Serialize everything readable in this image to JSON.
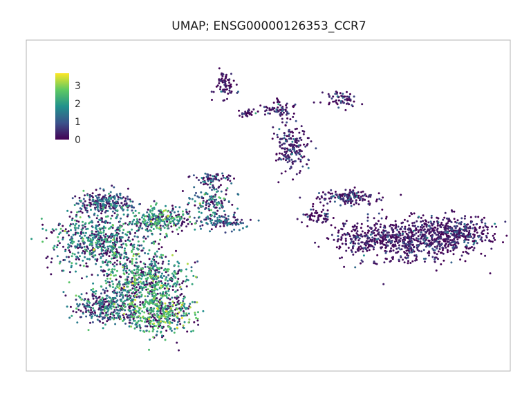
{
  "chart_data": {
    "type": "scatter",
    "title": "UMAP; ENSG00000126353_CCR7",
    "xlabel": "",
    "ylabel": "",
    "grid": false,
    "colorbar": {
      "placement": "top-left",
      "range": [
        0,
        3.7
      ],
      "ticks": [
        "0",
        "1",
        "2",
        "3"
      ],
      "colormap": [
        "#440154",
        "#3b528b",
        "#21918c",
        "#5ec962",
        "#fde725"
      ]
    },
    "clusters": [
      {
        "x": 0.12,
        "y": 0.62,
        "sx": 0.055,
        "sy": 0.085,
        "n": 650,
        "mean": 1.7
      },
      {
        "x": 0.22,
        "y": 0.4,
        "sx": 0.045,
        "sy": 0.075,
        "n": 550,
        "mean": 2.1
      },
      {
        "x": 0.25,
        "y": 0.22,
        "sx": 0.04,
        "sy": 0.055,
        "n": 420,
        "mean": 2.3
      },
      {
        "x": 0.13,
        "y": 0.27,
        "sx": 0.035,
        "sy": 0.045,
        "n": 300,
        "mean": 1.4
      },
      {
        "x": 0.13,
        "y": 0.82,
        "sx": 0.035,
        "sy": 0.03,
        "n": 220,
        "mean": 1.1
      },
      {
        "x": 0.26,
        "y": 0.73,
        "sx": 0.035,
        "sy": 0.03,
        "n": 250,
        "mean": 1.9
      },
      {
        "x": 0.4,
        "y": 0.72,
        "sx": 0.025,
        "sy": 0.02,
        "n": 110,
        "mean": 1.2
      },
      {
        "x": 0.37,
        "y": 0.83,
        "sx": 0.025,
        "sy": 0.035,
        "n": 130,
        "mean": 1.6
      },
      {
        "x": 0.37,
        "y": 0.95,
        "sx": 0.02,
        "sy": 0.02,
        "n": 70,
        "mean": 0.9
      },
      {
        "x": 0.55,
        "y": 1.12,
        "sx": 0.02,
        "sy": 0.07,
        "n": 180,
        "mean": 0.3
      },
      {
        "x": 0.52,
        "y": 1.33,
        "sx": 0.02,
        "sy": 0.025,
        "n": 60,
        "mean": 0.4
      },
      {
        "x": 0.66,
        "y": 1.38,
        "sx": 0.02,
        "sy": 0.02,
        "n": 60,
        "mean": 0.3
      },
      {
        "x": 0.4,
        "y": 1.45,
        "sx": 0.012,
        "sy": 0.035,
        "n": 70,
        "mean": 0.2
      },
      {
        "x": 0.45,
        "y": 1.3,
        "sx": 0.012,
        "sy": 0.01,
        "n": 30,
        "mean": 0.2
      },
      {
        "x": 0.83,
        "y": 0.62,
        "sx": 0.06,
        "sy": 0.06,
        "n": 500,
        "mean": 0.2
      },
      {
        "x": 0.92,
        "y": 0.66,
        "sx": 0.05,
        "sy": 0.05,
        "n": 350,
        "mean": 0.15
      },
      {
        "x": 0.72,
        "y": 0.63,
        "sx": 0.045,
        "sy": 0.045,
        "n": 220,
        "mean": 0.25
      },
      {
        "x": 0.68,
        "y": 0.85,
        "sx": 0.035,
        "sy": 0.02,
        "n": 150,
        "mean": 0.3
      },
      {
        "x": 0.61,
        "y": 0.75,
        "sx": 0.015,
        "sy": 0.025,
        "n": 60,
        "mean": 0.2
      }
    ]
  }
}
